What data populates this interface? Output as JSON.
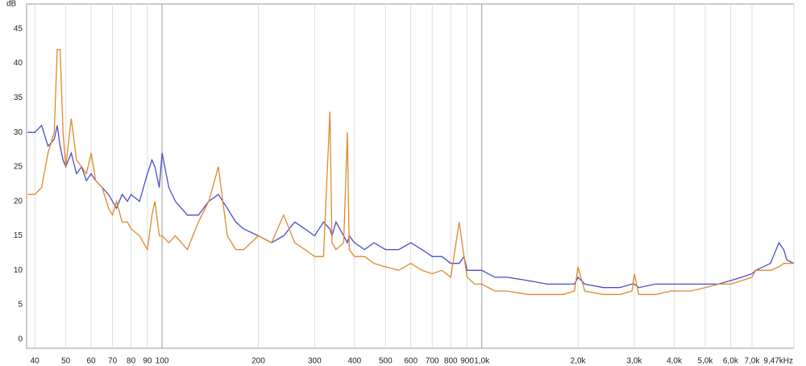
{
  "chart_data": {
    "type": "line",
    "y_label": "dB",
    "xscale": "log",
    "grid": true,
    "xlim": [
      37.7,
      9470
    ],
    "ylim": [
      -1.3,
      48.6
    ],
    "yticks": [
      0,
      5,
      10,
      15,
      20,
      25,
      30,
      35,
      40,
      45
    ],
    "xticks": [
      40,
      50,
      60,
      70,
      80,
      90,
      100,
      200,
      300,
      400,
      500,
      600,
      700,
      800,
      900,
      {
        "value": 1000,
        "label": "1,0k"
      },
      {
        "value": 2000,
        "label": "2,0k"
      },
      {
        "value": 3000,
        "label": "3,0k"
      },
      {
        "value": 4000,
        "label": "4,0k"
      },
      {
        "value": 5000,
        "label": "5,0k"
      },
      {
        "value": 6000,
        "label": "6,0k"
      },
      {
        "value": 7000,
        "label": "7,0k"
      },
      {
        "value": 9470,
        "label": "9,47kHz"
      }
    ],
    "x": [
      38,
      40,
      42,
      44,
      46,
      47,
      48,
      49,
      50,
      52,
      54,
      56,
      58,
      60,
      62,
      65,
      68,
      70,
      72,
      75,
      78,
      80,
      85,
      90,
      93,
      95,
      98,
      100,
      105,
      110,
      115,
      120,
      130,
      140,
      150,
      160,
      170,
      180,
      200,
      220,
      240,
      260,
      280,
      300,
      320,
      335,
      340,
      350,
      370,
      380,
      385,
      400,
      430,
      460,
      500,
      550,
      600,
      650,
      700,
      750,
      800,
      850,
      880,
      900,
      950,
      1000,
      1100,
      1200,
      1400,
      1600,
      1800,
      1950,
      2000,
      2100,
      2400,
      2700,
      2950,
      3000,
      3100,
      3500,
      3900,
      4000,
      4500,
      5000,
      5500,
      6000,
      6500,
      7000,
      7200,
      8000,
      8500,
      8800,
      9000,
      9470
    ],
    "series": [
      {
        "color": "#4b4bcc",
        "values": [
          30,
          30,
          31,
          28,
          29,
          31,
          28,
          26,
          25,
          27,
          24,
          25,
          23,
          24,
          23,
          22,
          21,
          20,
          19,
          21,
          20,
          21,
          20,
          24,
          26,
          25,
          22,
          27,
          22,
          20,
          19,
          18,
          18,
          20,
          21,
          19,
          17,
          16,
          15,
          14,
          15,
          17,
          16,
          15,
          17,
          16,
          15,
          17,
          15,
          14,
          15,
          14,
          13,
          14,
          13,
          13,
          14,
          13,
          12,
          12,
          11,
          11,
          12,
          10,
          10,
          10,
          9,
          9,
          8.5,
          8,
          8,
          8,
          9,
          8,
          7.5,
          7.5,
          8,
          8,
          7.5,
          8,
          8,
          8,
          8,
          8,
          8,
          8.5,
          9,
          9.5,
          10,
          11,
          14,
          13,
          11.5,
          11
        ]
      },
      {
        "color": "#dd8a2a",
        "values": [
          21,
          21,
          22,
          27,
          30,
          42,
          42,
          30,
          25,
          32,
          26,
          25,
          24,
          27,
          23,
          22,
          19,
          18,
          20,
          17,
          17,
          16,
          15,
          13,
          18,
          20,
          15,
          15,
          14,
          15,
          14,
          13,
          17,
          20,
          25,
          15,
          13,
          13,
          15,
          14,
          18,
          14,
          13,
          12,
          12,
          33,
          14,
          13,
          14,
          30,
          13,
          12,
          12,
          11,
          10.5,
          10,
          11,
          10,
          9.5,
          10,
          9,
          17,
          12,
          9,
          8,
          8,
          7,
          7,
          6.5,
          6.5,
          6.5,
          7,
          10.5,
          7,
          6.5,
          6.5,
          7,
          9.5,
          6.5,
          6.5,
          7,
          7,
          7,
          7.5,
          8,
          8,
          8.5,
          9,
          10,
          10,
          10.5,
          11,
          11,
          11
        ]
      }
    ]
  }
}
